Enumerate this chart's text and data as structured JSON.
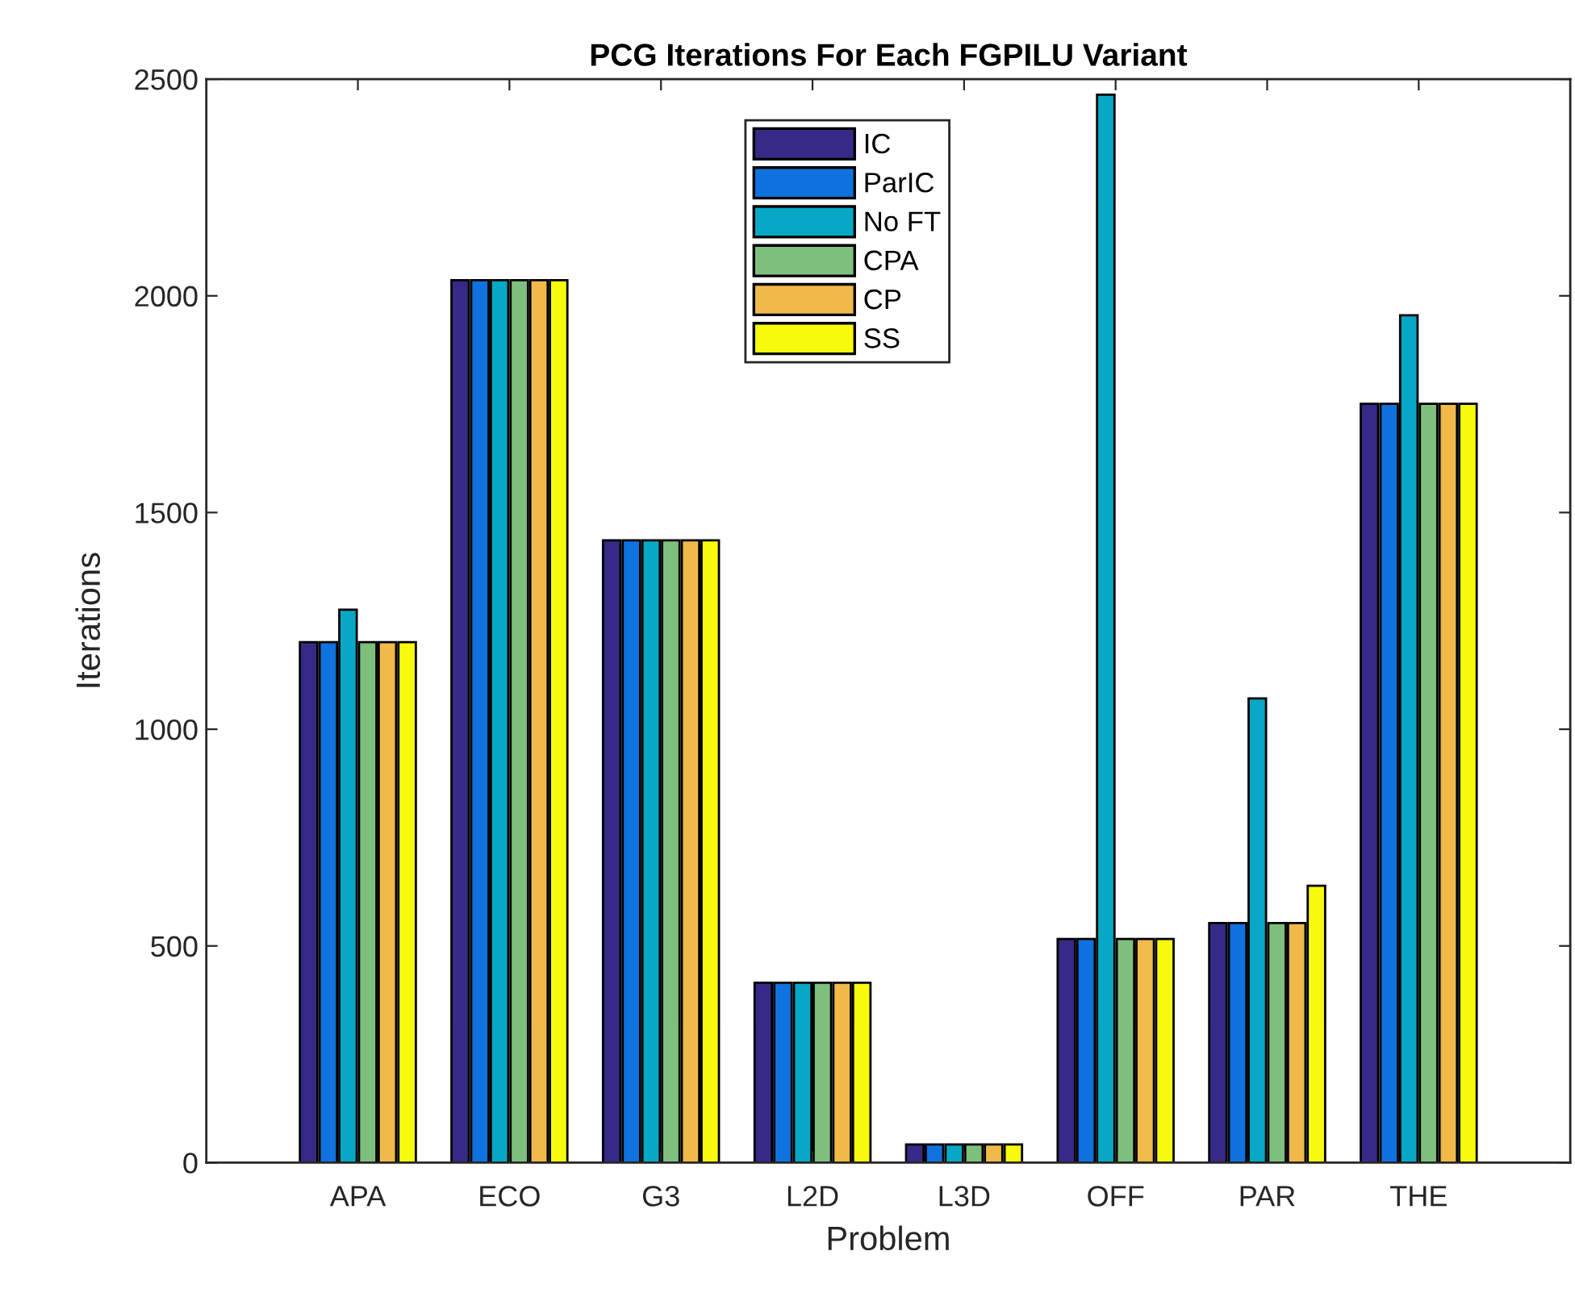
{
  "chart_data": {
    "type": "bar",
    "title": "PCG Iterations For Each FGPILU Variant",
    "xlabel": "Problem",
    "ylabel": "Iterations",
    "categories": [
      "APA",
      "ECO",
      "G3",
      "L2D",
      "L3D",
      "OFF",
      "PAR",
      "THE"
    ],
    "series": [
      {
        "name": "IC",
        "color": "#352a87",
        "values": [
          1201,
          2036,
          1436,
          415,
          42,
          516,
          553,
          1751
        ]
      },
      {
        "name": "ParIC",
        "color": "#0f72de",
        "values": [
          1201,
          2036,
          1436,
          415,
          42,
          516,
          553,
          1751
        ]
      },
      {
        "name": "No FT",
        "color": "#07a8c5",
        "values": [
          1276,
          2036,
          1436,
          415,
          42,
          2464,
          1071,
          1955
        ]
      },
      {
        "name": "CPA",
        "color": "#7ebf7e",
        "values": [
          1201,
          2036,
          1436,
          415,
          42,
          516,
          553,
          1751
        ]
      },
      {
        "name": "CP",
        "color": "#f1b94a",
        "values": [
          1201,
          2036,
          1436,
          415,
          42,
          516,
          553,
          1751
        ]
      },
      {
        "name": "SS",
        "color": "#f8fa0e",
        "values": [
          1201,
          2036,
          1436,
          415,
          42,
          516,
          639,
          1751
        ]
      }
    ],
    "ylim": [
      0,
      2500
    ],
    "yticks": [
      0,
      500,
      1000,
      1500,
      2000,
      2500
    ],
    "grid": false,
    "legend": "top"
  }
}
